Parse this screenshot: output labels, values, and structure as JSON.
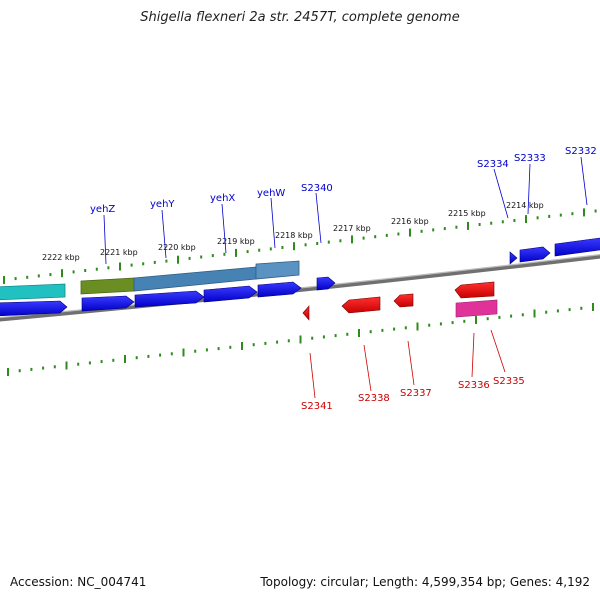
{
  "title": "Shigella flexneri 2a str. 2457T, complete genome",
  "footer": {
    "accession": "Accession: NC_004741",
    "summary": "Topology: circular; Length: 4,599,354 bp; Genes: 4,192"
  },
  "colors": {
    "backbone": "#8c8c8c",
    "tick": "#2e8b1e",
    "forward_label": "#0000cc",
    "reverse_label": "#cc0000",
    "forward_cds": "#0000ee",
    "reverse_cds": "#ee0000",
    "teal_feature": "#22c1c1",
    "olive_feature": "#6b8e23",
    "steel_feature": "#4682b4",
    "magenta_feature": "#e0339a"
  },
  "scale": {
    "unit": "kbp",
    "labels": [
      "2222 kbp",
      "2221 kbp",
      "2220 kbp",
      "2219 kbp",
      "2218 kbp",
      "2217 kbp",
      "2216 kbp",
      "2215 kbp",
      "2214 kbp"
    ]
  },
  "forward_genes": [
    "yehZ",
    "yehY",
    "yehX",
    "yehW",
    "S2340",
    "S2334",
    "S2333",
    "S2332"
  ],
  "reverse_genes": [
    "S2341",
    "S2338",
    "S2337",
    "S2336",
    "S2335"
  ]
}
